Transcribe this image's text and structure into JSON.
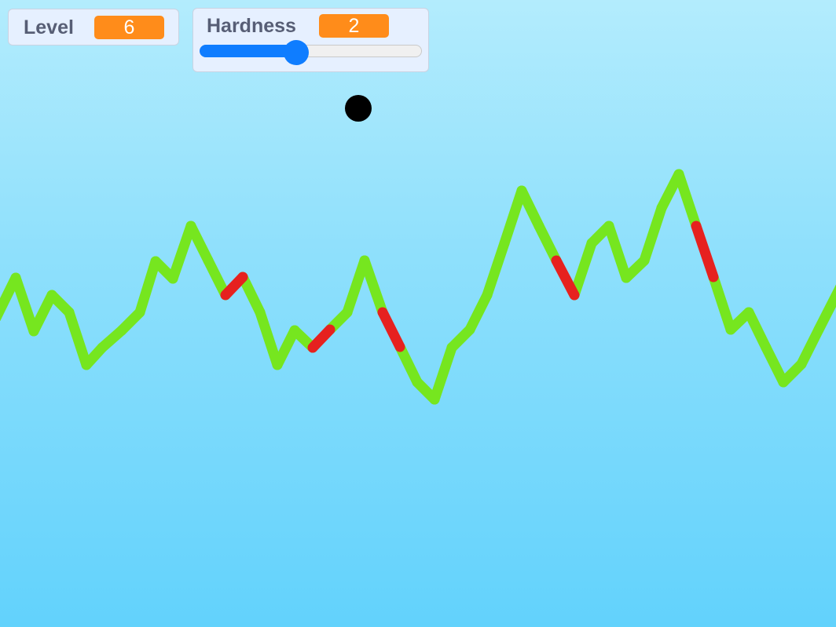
{
  "monitors": {
    "level": {
      "label": "Level",
      "value": "6"
    },
    "hardness": {
      "label": "Hardness",
      "value": "2",
      "slider_fraction": 0.4
    }
  },
  "colors": {
    "sky_top": "#b3ecfd",
    "sky_bottom": "#62d2fc",
    "safe_line": "#76e61f",
    "danger_line": "#e6211f",
    "monitor_value": "#ff8c1a",
    "slider": "#0f7dff",
    "ball": "#000000"
  }
}
